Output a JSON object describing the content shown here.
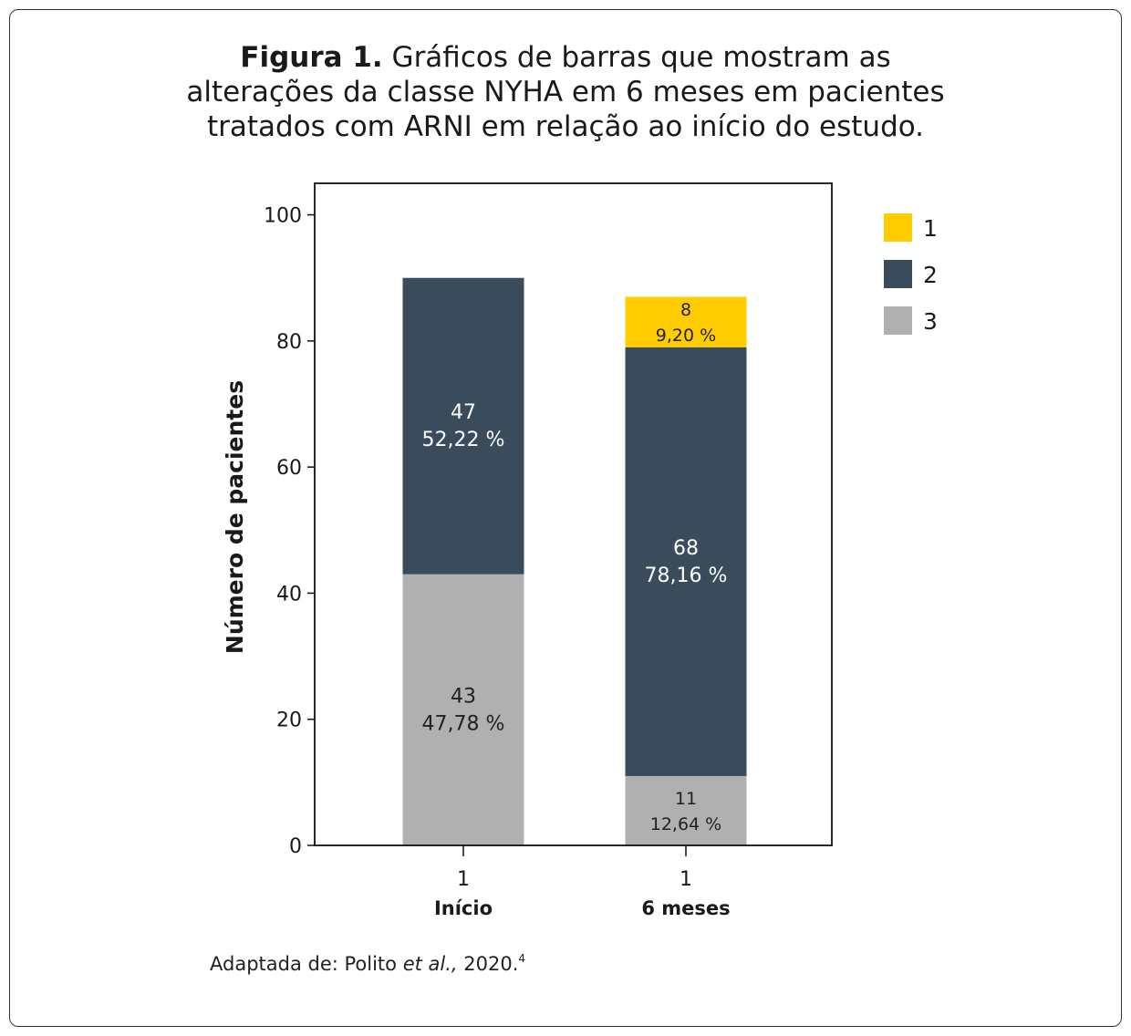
{
  "title": {
    "lead": "Figura 1.",
    "line1": " Gráficos de barras que mostram as",
    "line2": "alterações da classe NYHA em 6 meses em pacientes",
    "line3": "tratados com ARNI em relação ao início do estudo."
  },
  "source": {
    "prefix": "Adaptada de: Polito ",
    "italic": "et al.,",
    "suffix": " 2020.",
    "ref": "4"
  },
  "colors": {
    "class1": "#FFCC00",
    "class2": "#3A4C5C",
    "class3": "#B0B0B0"
  },
  "chart_data": {
    "type": "bar",
    "stacked": true,
    "ylabel": "Número de pacientes",
    "xlabel": "",
    "ylim": [
      0,
      105
    ],
    "yticks": [
      0,
      20,
      40,
      60,
      80,
      100
    ],
    "categories": [
      {
        "tick": "1",
        "label": "Início"
      },
      {
        "tick": "1",
        "label": "6 meses"
      }
    ],
    "legend_position": "top-right",
    "series": [
      {
        "name": "3",
        "color": "#B0B0B0",
        "values": [
          43,
          11
        ],
        "labels": [
          [
            "43",
            "47,78 %"
          ],
          [
            "11",
            "12,64 %"
          ]
        ]
      },
      {
        "name": "2",
        "color": "#3A4C5C",
        "values": [
          47,
          68
        ],
        "labels": [
          [
            "47",
            "52,22 %"
          ],
          [
            "68",
            "78,16 %"
          ]
        ]
      },
      {
        "name": "1",
        "color": "#FFCC00",
        "values": [
          0,
          8
        ],
        "labels": [
          null,
          [
            "8",
            "9,20 %"
          ]
        ]
      }
    ],
    "legend_order": [
      "1",
      "2",
      "3"
    ]
  }
}
